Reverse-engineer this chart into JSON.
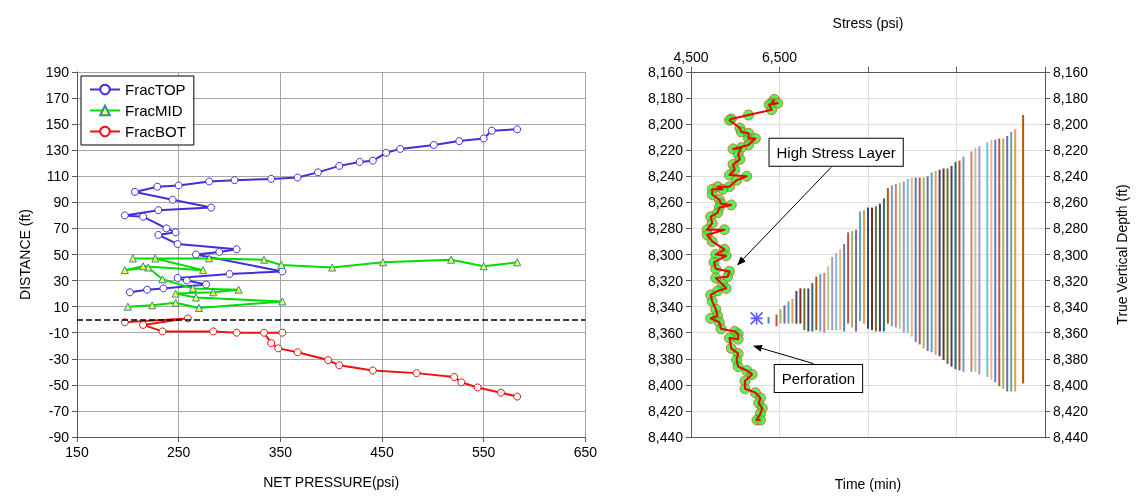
{
  "chart_data": [
    {
      "type": "line",
      "xlabel": "NET PRESSURE(psi)",
      "ylabel": "DISTANCE (ft)",
      "xlim": [
        150,
        650
      ],
      "xticks": [
        150,
        250,
        350,
        450,
        550,
        650
      ],
      "ylim": [
        -90,
        190
      ],
      "yticks": [
        -90,
        -70,
        -50,
        -30,
        -10,
        10,
        30,
        50,
        70,
        90,
        110,
        130,
        150,
        170,
        190
      ],
      "grid": true,
      "legend": "top left",
      "ref_lines": [
        {
          "axis": "y",
          "value": 0,
          "color": "#000000",
          "line_style": "dashed"
        }
      ],
      "series": [
        {
          "name": "FracTOP",
          "color": "#4030d8",
          "marker": "circle",
          "x": [
            202,
            219,
            235,
            277,
            258,
            249,
            300,
            352,
            267,
            290,
            307,
            249,
            230,
            247,
            238,
            215,
            197,
            230,
            282,
            244,
            207,
            229,
            250,
            280,
            305,
            341,
            367,
            387,
            408,
            428,
            441,
            454,
            468,
            501,
            526,
            550,
            558,
            583
          ],
          "values": [
            21,
            23,
            24,
            27,
            30,
            32,
            35,
            37,
            50,
            52,
            54,
            58,
            65,
            67,
            70,
            79,
            80,
            84,
            86,
            92,
            98,
            102,
            103,
            106,
            107,
            108,
            109,
            113,
            118,
            121,
            122,
            128,
            131,
            134,
            137,
            139,
            145,
            146
          ]
        },
        {
          "name": "FracMID",
          "color": "#00dd00",
          "marker": "triangle",
          "x": [
            200,
            224,
            247,
            270,
            352,
            267,
            247,
            284,
            309,
            264,
            234,
            220,
            197,
            215,
            274,
            227,
            205,
            280,
            334,
            351,
            401,
            451,
            518,
            550,
            583
          ],
          "values": [
            10,
            11,
            13,
            9,
            14,
            17,
            20,
            21,
            23,
            24,
            31,
            40,
            38,
            41,
            38,
            47,
            47,
            47,
            46,
            42,
            40,
            44,
            46,
            41,
            44
          ]
        },
        {
          "name": "FracBOT",
          "color": "#ee1111",
          "marker": "circle",
          "x": [
            197,
            259,
            215,
            234,
            284,
            307,
            352,
            334,
            341,
            348,
            367,
            397,
            408,
            441,
            484,
            521,
            528,
            544,
            567,
            583
          ],
          "values": [
            -2,
            1,
            -4,
            -9,
            -9,
            -10,
            -10,
            -10,
            -18,
            -22,
            -25,
            -31,
            -35,
            -39,
            -41,
            -44,
            -48,
            -52,
            -56,
            -59
          ]
        }
      ]
    },
    {
      "type": "bar",
      "xlabel": "Time (min)",
      "x2label": "Stress (psi)",
      "y2label": "True Vertical Depth (ft)",
      "categories": [
        null,
        null,
        null,
        null,
        null,
        null,
        null,
        null,
        null,
        null,
        null,
        null,
        null,
        null,
        null,
        null,
        null,
        null,
        null,
        null,
        null,
        null,
        null,
        null,
        null,
        null,
        null,
        null,
        null,
        null,
        null,
        null,
        null,
        null,
        null,
        null,
        null,
        null,
        null,
        null,
        null,
        null,
        null,
        null,
        null,
        null,
        null,
        null,
        null,
        null,
        null,
        null,
        null,
        null,
        null,
        null,
        null,
        null,
        null,
        null,
        null,
        null,
        null,
        null,
        null,
        null,
        null,
        null,
        null,
        null,
        null,
        null,
        null,
        null,
        null,
        null,
        null,
        null,
        null,
        null,
        null,
        null,
        null,
        null,
        null,
        null,
        null,
        null,
        null
      ],
      "ylim": [
        8440,
        8160
      ],
      "yticks": [
        {
          "value": 8160,
          "label": "8,160"
        },
        {
          "value": 8180,
          "label": "8,180"
        },
        {
          "value": 8200,
          "label": "8,200"
        },
        {
          "value": 8220,
          "label": "8,220"
        },
        {
          "value": 8240,
          "label": "8,240"
        },
        {
          "value": 8260,
          "label": "8,260"
        },
        {
          "value": 8280,
          "label": "8,280"
        },
        {
          "value": 8300,
          "label": "8,300"
        },
        {
          "value": 8320,
          "label": "8,320"
        },
        {
          "value": 8340,
          "label": "8,340"
        },
        {
          "value": 8360,
          "label": "8,360"
        },
        {
          "value": 8380,
          "label": "8,380"
        },
        {
          "value": 8400,
          "label": "8,400"
        },
        {
          "value": 8420,
          "label": "8,420"
        },
        {
          "value": 8440,
          "label": "8,440"
        }
      ],
      "y2lim": [
        8440,
        8160
      ],
      "y2ticks": [
        {
          "value": 8160,
          "label": "8,160"
        },
        {
          "value": 8180,
          "label": "8,180"
        },
        {
          "value": 8200,
          "label": "8,200"
        },
        {
          "value": 8220,
          "label": "8,220"
        },
        {
          "value": 8240,
          "label": "8,240"
        },
        {
          "value": 8260,
          "label": "8,260"
        },
        {
          "value": 8280,
          "label": "8,280"
        },
        {
          "value": 8300,
          "label": "8,300"
        },
        {
          "value": 8320,
          "label": "8,320"
        },
        {
          "value": 8340,
          "label": "8,340"
        },
        {
          "value": 8360,
          "label": "8,360"
        },
        {
          "value": 8380,
          "label": "8,380"
        },
        {
          "value": 8400,
          "label": "8,400"
        },
        {
          "value": 8420,
          "label": "8,420"
        },
        {
          "value": 8440,
          "label": "8,440"
        }
      ],
      "x2lim": [
        4500,
        12500
      ],
      "x2ticks": [
        {
          "value": 4500,
          "label": "4,500"
        },
        {
          "value": 6500,
          "label": "6,500"
        },
        {
          "value": 8500,
          "label": null
        },
        {
          "value": 10500,
          "label": null
        }
      ],
      "grid": true,
      "tick_labels": [
        "y",
        "y2",
        "x2"
      ],
      "annotations": [
        "High Stress Layer",
        "Perforation"
      ],
      "series": [
        {
          "type": "bar",
          "base": [
            null,
            null,
            null,
            null,
            null,
            null,
            null,
            null,
            null,
            null,
            null,
            null,
            null,
            null,
            null,
            null,
            null,
            null,
            null,
            8348,
            null,
            8346,
            8342,
            8339,
            8336,
            8334,
            8328,
            8326,
            8326,
            8326,
            8322,
            8317,
            8315,
            8314,
            8309,
            8302,
            8299,
            8296,
            8292,
            8283,
            8282,
            8281,
            8267,
            8266,
            8264,
            8264,
            8263,
            8261,
            8257,
            8249,
            8247,
            8246,
            8245,
            8244,
            8242,
            8241,
            8241,
            8241,
            8241,
            8240,
            8237,
            8236,
            8235,
            8234,
            8234,
            8232,
            8229,
            8228,
            8225,
            null,
            8221,
            8218,
            8217,
            null,
            8214,
            8212,
            8212,
            8211,
            8211,
            8209,
            8206,
            8204,
            null,
            8193,
            null,
            null,
            null,
            null,
            null
          ],
          "values": [
            null,
            null,
            null,
            null,
            null,
            null,
            null,
            null,
            null,
            null,
            null,
            null,
            null,
            null,
            null,
            null,
            null,
            null,
            null,
            5,
            null,
            9,
            11,
            14,
            17,
            19,
            25,
            27,
            32,
            33,
            37,
            41,
            44,
            46,
            49,
            56,
            59,
            62,
            67,
            70,
            74,
            78,
            84,
            87,
            93,
            94,
            96,
            98,
            102,
            104,
            108,
            110,
            112,
            116,
            118,
            122,
            126,
            128,
            131,
            134,
            138,
            141,
            143,
            147,
            150,
            154,
            159,
            161,
            165,
            null,
            169,
            172,
            175,
            null,
            180,
            184,
            186,
            190,
            192,
            196,
            199,
            201,
            null,
            206,
            null,
            null,
            null,
            null,
            null
          ],
          "colors": [
            null,
            null,
            null,
            null,
            null,
            null,
            null,
            null,
            null,
            null,
            null,
            null,
            null,
            null,
            null,
            null,
            null,
            null,
            null,
            "#4f81bd",
            null,
            "#c0504d",
            "#9bbb59",
            "#8064a2",
            "#4bacc6",
            "#f79646",
            "#2c4d75",
            "#772c2a",
            "#5f7530",
            "#4d3b62",
            "#276a7c",
            "#b65708",
            "#729aca",
            "#d4807e",
            "#b2ce8c",
            "#a495c0",
            "#6fc3d9",
            "#fab07c",
            "#4f81bd",
            "#c0504d",
            "#9bbb59",
            "#8064a2",
            "#4bacc6",
            "#f79646",
            "#2c4d75",
            "#772c2a",
            "#5f7530",
            "#4d3b62",
            "#276a7c",
            "#b65708",
            "#729aca",
            "#d4807e",
            "#b2ce8c",
            "#a495c0",
            "#6fc3d9",
            "#fab07c",
            "#4f81bd",
            "#c0504d",
            "#9bbb59",
            "#8064a2",
            "#4bacc6",
            "#f79646",
            "#2c4d75",
            "#772c2a",
            "#5f7530",
            "#4d3b62",
            "#276a7c",
            "#b65708",
            "#729aca",
            null,
            "#d4807e",
            "#b2ce8c",
            "#a495c0",
            null,
            "#6fc3d9",
            "#fab07c",
            "#4f81bd",
            "#c0504d",
            "#9bbb59",
            "#8064a2",
            "#4bacc6",
            "#f79646",
            null,
            "#b65708",
            null,
            null,
            null,
            null,
            null
          ]
        },
        {
          "type": "scatter",
          "marker": "cross",
          "color": "#3333ff",
          "values": [
            null,
            null,
            null,
            null,
            null,
            null,
            null,
            null,
            null,
            null,
            null,
            null,
            null,
            null,
            null,
            null,
            8349,
            null,
            null,
            null,
            null,
            null,
            null,
            null,
            null,
            null,
            null,
            null,
            null,
            null,
            null,
            null,
            null,
            null,
            null,
            null,
            null,
            null,
            null,
            null,
            null,
            null,
            null,
            null,
            null,
            null,
            null,
            null,
            null,
            null,
            null,
            null,
            null,
            null,
            null,
            null,
            null,
            null,
            null,
            null,
            null,
            null,
            null,
            null,
            null,
            null,
            null,
            null,
            null,
            null,
            null,
            null,
            null,
            null,
            null,
            null,
            null,
            null,
            null,
            null,
            null,
            null,
            null,
            null,
            null,
            null,
            null,
            null,
            null
          ]
        },
        {
          "type": "line",
          "axis": "x2",
          "marker": "circle",
          "color": "#33ee33",
          "x": [
            6383,
            6320,
            6460,
            6266,
            6320,
            5800,
            5410,
            5370,
            5605,
            5640,
            5800,
            5800,
            5955,
            5800,
            5450,
            5640,
            5565,
            5605,
            5450,
            5490,
            5370,
            5760,
            5530,
            5370,
            5100,
            5215,
            4980,
            4980,
            5140,
            5180,
            5410,
            5140,
            5100,
            4945,
            4980,
            4865,
            5255,
            4865,
            4980,
            5255,
            5060,
            5295,
            5020,
            5060,
            5370,
            5330,
            5060,
            5215,
            5295,
            5100,
            4945,
            4980,
            5060,
            5100,
            4945,
            5140,
            5180,
            5490,
            5565,
            5565,
            5370,
            5410,
            5565,
            5530,
            5565,
            5760,
            5880,
            5720,
            5720,
            5955,
            6070,
            6030,
            6110,
            6070,
            5990,
            6070
          ],
          "values": [
            8181,
            8184,
            8184,
            8185,
            8189,
            8193,
            8196,
            8197,
            8203,
            8206,
            8207,
            8211,
            8211,
            8216,
            8219,
            8218,
            8223,
            8227,
            8231,
            8235,
            8239,
            8240,
            8243,
            8248,
            8248,
            8250,
            8250,
            8254,
            8258,
            8261,
            8262,
            8264,
            8268,
            8271,
            8276,
            8281,
            8281,
            8285,
            8290,
            8296,
            8300,
            8301,
            8306,
            8311,
            8313,
            8317,
            8318,
            8323,
            8326,
            8328,
            8331,
            8336,
            8342,
            8347,
            8349,
            8352,
            8357,
            8359,
            8361,
            8365,
            8364,
            8372,
            8376,
            8381,
            8386,
            8389,
            8392,
            8397,
            8403,
            8406,
            8410,
            8414,
            8418,
            8422,
            8427,
            8427
          ]
        }
      ]
    }
  ]
}
